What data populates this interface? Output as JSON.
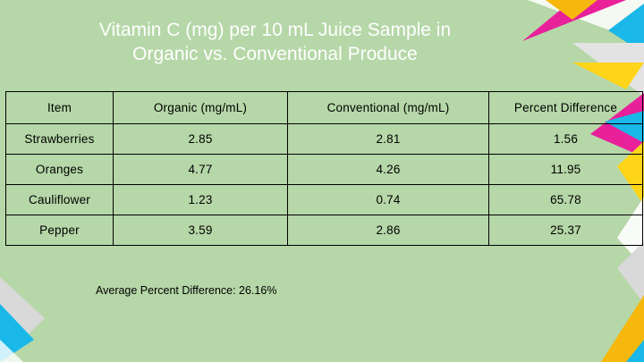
{
  "slide": {
    "title_line1": "Vitamin C (mg) per 10 mL Juice Sample in",
    "title_line2": "Organic vs. Conventional Produce",
    "background_color": "#b6d7a8",
    "title_color": "#ffffff"
  },
  "table": {
    "headers": [
      "Item",
      "Organic (mg/mL)",
      "Conventional (mg/mL)",
      "Percent Difference"
    ],
    "rows": [
      [
        "Strawberries",
        "2.85",
        "2.81",
        "1.56"
      ],
      [
        "Oranges",
        "4.77",
        "4.26",
        "11.95"
      ],
      [
        "Cauliflower",
        "1.23",
        "0.74",
        "65.78"
      ],
      [
        "Pepper",
        "3.59",
        "2.86",
        "25.37"
      ]
    ]
  },
  "summary": {
    "average_label": "Average Percent Difference:  26.16%"
  },
  "decoration": {
    "colors": [
      "#ff00a0",
      "#ffd700",
      "#00c8ff",
      "#d9d9d9",
      "#ffffff"
    ]
  }
}
